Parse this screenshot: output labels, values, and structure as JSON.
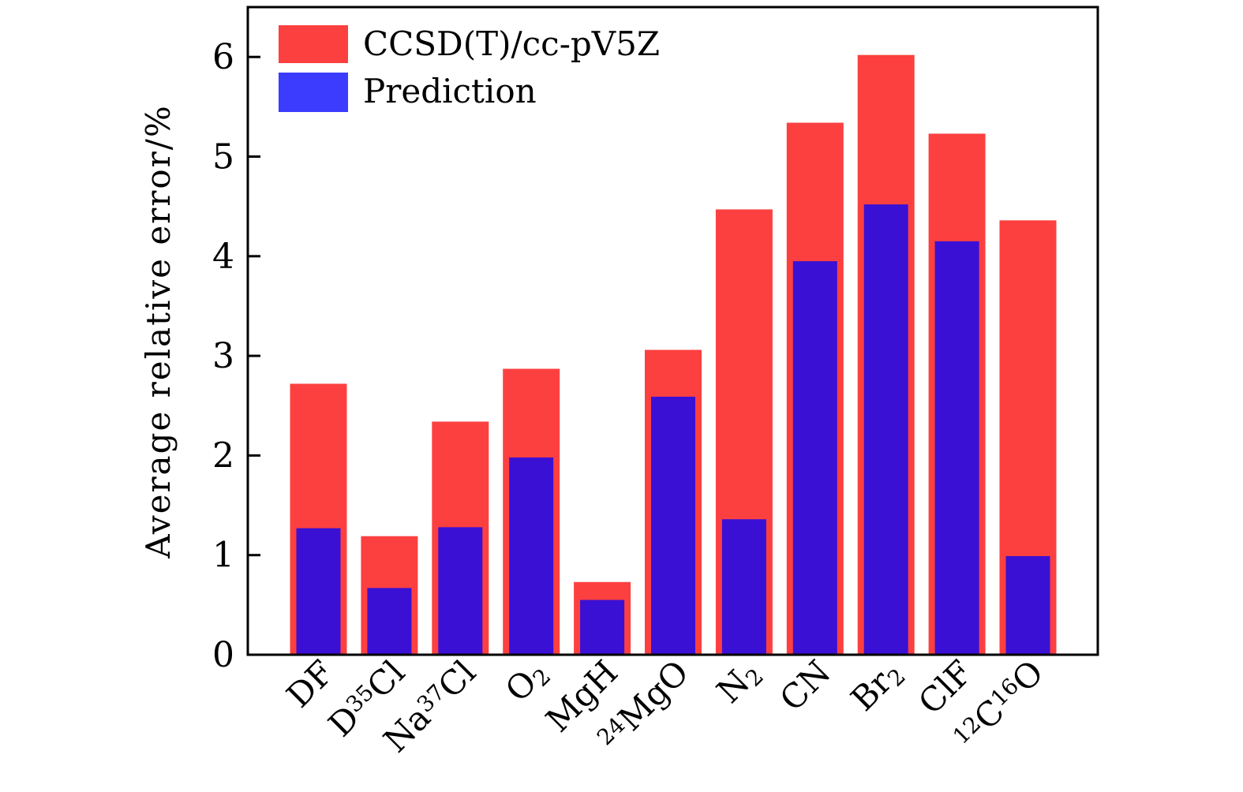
{
  "chart_data": {
    "type": "bar",
    "title": "",
    "xlabel": "",
    "ylabel": "Average relative error/%",
    "ylim": [
      0,
      6.5
    ],
    "yticks": [
      0,
      1,
      2,
      3,
      4,
      5,
      6
    ],
    "grid": false,
    "legend_position": "top-left",
    "categories": [
      {
        "base": "DF",
        "pre": "",
        "sup": "",
        "sub": "",
        "mid": "",
        "sup2": "",
        "tail": ""
      },
      {
        "base": "D",
        "sup": "35",
        "tail": "Cl"
      },
      {
        "base": "Na",
        "sup": "37",
        "tail": "Cl"
      },
      {
        "base": "O",
        "sub": "2"
      },
      {
        "base": "MgH"
      },
      {
        "pre": "24",
        "base": "MgO"
      },
      {
        "base": "N",
        "sub": "2"
      },
      {
        "base": "CN"
      },
      {
        "base": "Br",
        "sub": "2"
      },
      {
        "base": "ClF"
      },
      {
        "pre": "12",
        "base": "C",
        "sup": "16",
        "tail": "O"
      }
    ],
    "category_names": [
      "DF",
      "D35Cl",
      "Na37Cl",
      "O2",
      "MgH",
      "24MgO",
      "N2",
      "CN",
      "Br2",
      "ClF",
      "12C16O"
    ],
    "series": [
      {
        "name": "CCSD(T)/cc-pV5Z",
        "color": "#fc4040",
        "values": [
          2.72,
          1.19,
          2.34,
          2.87,
          0.73,
          3.06,
          4.47,
          5.34,
          6.02,
          5.23,
          4.36
        ]
      },
      {
        "name": "Prediction",
        "color": "#3a10d4",
        "legend_color": "#3c3cff",
        "values": [
          1.27,
          0.67,
          1.28,
          1.98,
          0.55,
          2.59,
          1.36,
          3.95,
          4.52,
          4.15,
          0.99
        ]
      }
    ]
  }
}
